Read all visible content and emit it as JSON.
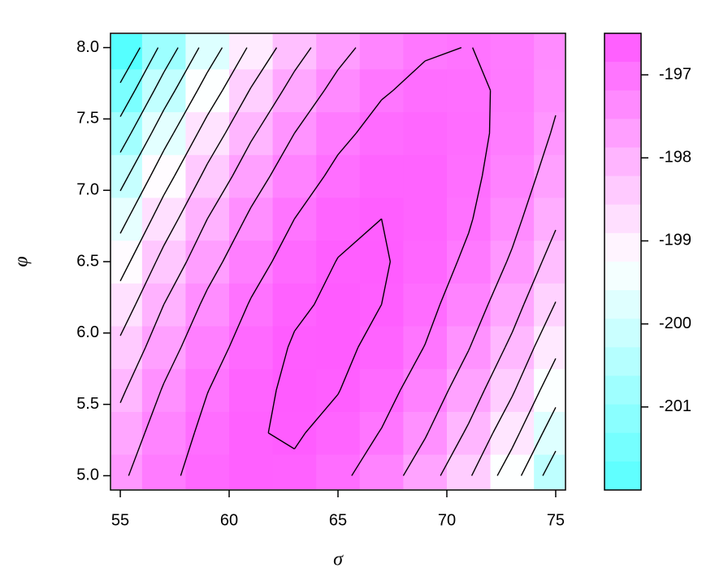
{
  "chart_data": {
    "type": "contour",
    "xlabel": "σ",
    "ylabel": "φ",
    "x": [
      55,
      57,
      59,
      61,
      63,
      65,
      67,
      69,
      71,
      73,
      75
    ],
    "y": [
      5.0,
      5.3,
      5.6,
      5.9,
      6.2,
      6.5,
      6.8,
      7.1,
      7.4,
      7.7,
      8.0
    ],
    "z": [
      [
        -197.59,
        -197.12,
        -196.81,
        -196.67,
        -196.7,
        -196.89,
        -197.24,
        -197.76,
        -198.44,
        -199.29,
        -200.3
      ],
      [
        -197.81,
        -197.26,
        -196.89,
        -196.67,
        -196.62,
        -196.74,
        -197.02,
        -197.46,
        -198.07,
        -198.84,
        -199.78
      ],
      [
        -198.08,
        -197.46,
        -197.01,
        -196.72,
        -196.6,
        -196.64,
        -196.84,
        -197.21,
        -197.75,
        -198.44,
        -199.31
      ],
      [
        -198.4,
        -197.71,
        -197.18,
        -196.82,
        -196.62,
        -196.59,
        -196.72,
        -197.01,
        -197.48,
        -198.1,
        -198.89
      ],
      [
        -198.77,
        -198.0,
        -197.4,
        -196.97,
        -196.7,
        -196.59,
        -196.65,
        -196.87,
        -197.25,
        -197.81,
        -198.52
      ],
      [
        -199.19,
        -198.35,
        -197.68,
        -197.17,
        -196.82,
        -196.64,
        -196.62,
        -196.77,
        -197.08,
        -197.56,
        -198.2
      ],
      [
        -199.66,
        -198.75,
        -198.0,
        -197.42,
        -197.0,
        -196.74,
        -196.65,
        -196.73,
        -196.96,
        -197.37,
        -197.93
      ],
      [
        -200.18,
        -199.2,
        -198.38,
        -197.72,
        -197.22,
        -196.9,
        -196.73,
        -196.73,
        -196.9,
        -197.22,
        -197.72
      ],
      [
        -200.76,
        -199.7,
        -198.8,
        -198.07,
        -197.5,
        -197.1,
        -196.86,
        -196.79,
        -196.88,
        -197.13,
        -197.55
      ],
      [
        -201.38,
        -200.25,
        -199.28,
        -198.47,
        -197.83,
        -197.35,
        -197.04,
        -196.89,
        -196.91,
        -197.09,
        -197.43
      ],
      [
        -202.05,
        -200.84,
        -199.8,
        -198.92,
        -198.21,
        -197.66,
        -197.27,
        -197.05,
        -196.99,
        -197.1,
        -197.37
      ]
    ],
    "levels": [
      -201.5,
      -201,
      -200.5,
      -200,
      -199.5,
      -199,
      -198.5,
      -198,
      -197.5,
      -197,
      -196.65
    ],
    "colors": [
      "#55FFFF",
      "#FFFFFF",
      "#FF55FF"
    ],
    "xlim": [
      54.55,
      75.45
    ],
    "ylim": [
      4.9,
      8.1
    ],
    "xticks": [
      55,
      60,
      65,
      70,
      75
    ],
    "yticks": [
      {
        "value": 5,
        "label": "5.0"
      },
      5.5,
      {
        "value": 6,
        "label": "6.0"
      },
      6.5,
      {
        "value": 7,
        "label": "7.0"
      },
      7.5,
      {
        "value": 8,
        "label": "8.0"
      }
    ],
    "zlim": [
      -202.0,
      -196.5
    ],
    "colorbar_ticks": [
      -201,
      -200,
      -199,
      -198,
      -197
    ]
  }
}
